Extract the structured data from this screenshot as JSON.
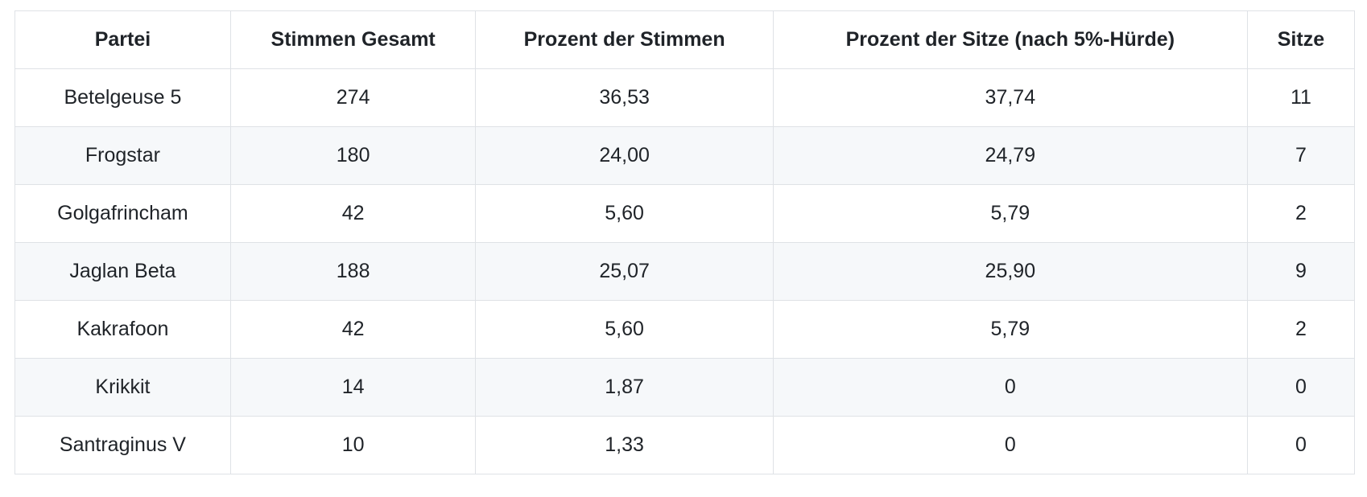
{
  "table": {
    "columns": [
      "Partei",
      "Stimmen Gesamt",
      "Prozent der Stimmen",
      "Prozent der Sitze (nach 5%-Hürde)",
      "Sitze"
    ],
    "rows": [
      [
        "Betelgeuse 5",
        "274",
        "36,53",
        "37,74",
        "11"
      ],
      [
        "Frogstar",
        "180",
        "24,00",
        "24,79",
        "7"
      ],
      [
        "Golgafrincham",
        "42",
        "5,60",
        "5,79",
        "2"
      ],
      [
        "Jaglan Beta",
        "188",
        "25,07",
        "25,90",
        "9"
      ],
      [
        "Kakrafoon",
        "42",
        "5,60",
        "5,79",
        "2"
      ],
      [
        "Krikkit",
        "14",
        "1,87",
        "0",
        "0"
      ],
      [
        "Santraginus V",
        "10",
        "1,33",
        "0",
        "0"
      ]
    ]
  },
  "colors": {
    "text": "#1f2328",
    "border": "#dfe2e6",
    "stripe": "#f6f8fa",
    "background": "#ffffff"
  }
}
